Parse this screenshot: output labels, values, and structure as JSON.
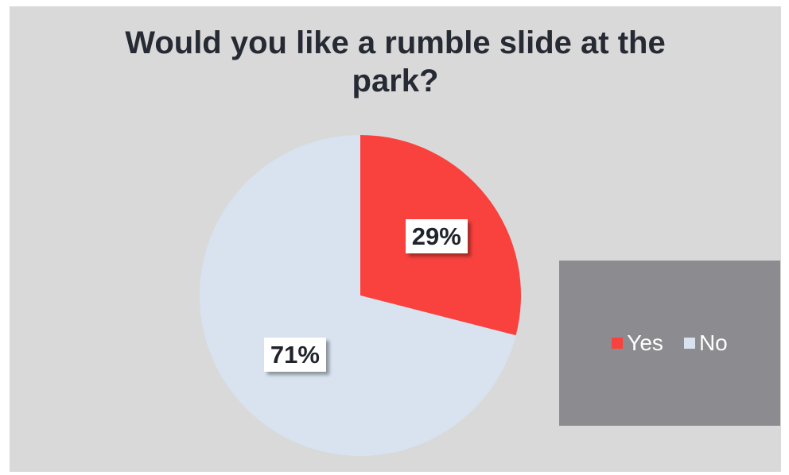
{
  "chart_data": {
    "type": "pie",
    "title": "Would you like a rumble slide at the park?",
    "categories": [
      "Yes",
      "No"
    ],
    "values": [
      29,
      71
    ],
    "data_labels": [
      "29%",
      "71%"
    ],
    "colors": [
      "#f9423d",
      "#d8e3ef"
    ],
    "legend_position": "right",
    "background_color": "#d9d9d9",
    "legend_background_color": "#8c8c90"
  }
}
